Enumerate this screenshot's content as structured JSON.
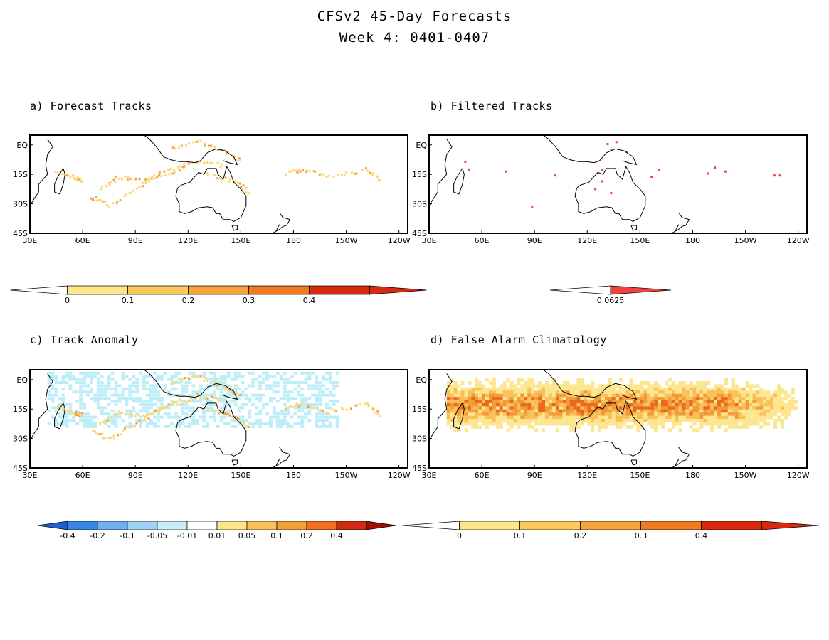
{
  "title": "CFSv2 45-Day Forecasts",
  "subtitle": "Week 4: 0401-0407",
  "lon_labels": [
    "30E",
    "60E",
    "90E",
    "120E",
    "150E",
    "180",
    "150W",
    "120W"
  ],
  "lat_labels": [
    "EQ",
    "15S",
    "30S",
    "45S"
  ],
  "panels": [
    {
      "title": "a) Forecast Tracks",
      "colorbar": {
        "labels": [
          "0",
          "0.1",
          "0.2",
          "0.3",
          "0.4"
        ],
        "colors": [
          "#ffffff",
          "#fde68a",
          "#fbc85a",
          "#f7a43a",
          "#f07a20",
          "#d82a10"
        ]
      }
    },
    {
      "title": "b) Filtered Tracks",
      "colorbar": {
        "labels": [
          "0.0625"
        ],
        "colors": [
          "#ffffff",
          "#f04040"
        ]
      }
    },
    {
      "title": "c) Track Anomaly",
      "colorbar": {
        "labels": [
          "-0.4",
          "-0.2",
          "-0.1",
          "-0.05",
          "-0.01",
          "0.01",
          "0.05",
          "0.1",
          "0.2",
          "0.4"
        ],
        "colors": [
          "#1f5fd0",
          "#3a86e8",
          "#6fb0f0",
          "#9fd2f5",
          "#c8eef8",
          "#ffffff",
          "#fde68a",
          "#fbc15a",
          "#f6a03a",
          "#f07020",
          "#d02a10",
          "#a01000"
        ]
      }
    },
    {
      "title": "d) False Alarm Climatology",
      "colorbar": {
        "labels": [
          "0",
          "0.1",
          "0.2",
          "0.3",
          "0.4"
        ],
        "colors": [
          "#ffffff",
          "#fde68a",
          "#fbc85a",
          "#f7a43a",
          "#f07a20",
          "#d82a10"
        ]
      }
    }
  ]
}
